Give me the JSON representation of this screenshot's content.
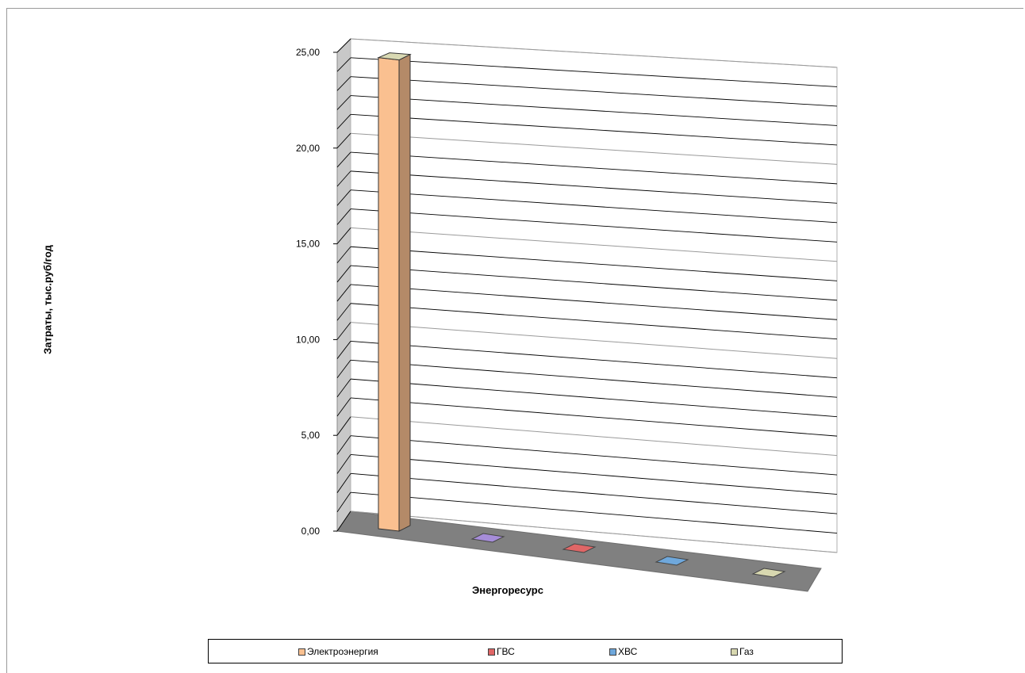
{
  "chart_data": {
    "type": "bar",
    "categories": [
      "Электроэнергия",
      "ГВС",
      "ХВС",
      "Газ"
    ],
    "values": [
      24.6,
      0.0,
      0.0,
      0.0
    ],
    "xlabel": "Энергоресурс",
    "ylabel": "Затраты, тыс.руб/год",
    "ylim": [
      0,
      25
    ],
    "yticks": [
      "0,00",
      "5,00",
      "10,00",
      "15,00",
      "20,00",
      "25,00"
    ],
    "grid": true,
    "legend_position": "bottom",
    "style": "3d-column",
    "colors": {
      "Электроэнергия": "#fac090",
      "violet_marker": "#a68dd9",
      "ГВС": "#e06666",
      "ХВС": "#6fa8dc",
      "Газ": "#d8d8b0",
      "floor": "#808080",
      "wall": "#c8c8c8"
    }
  }
}
